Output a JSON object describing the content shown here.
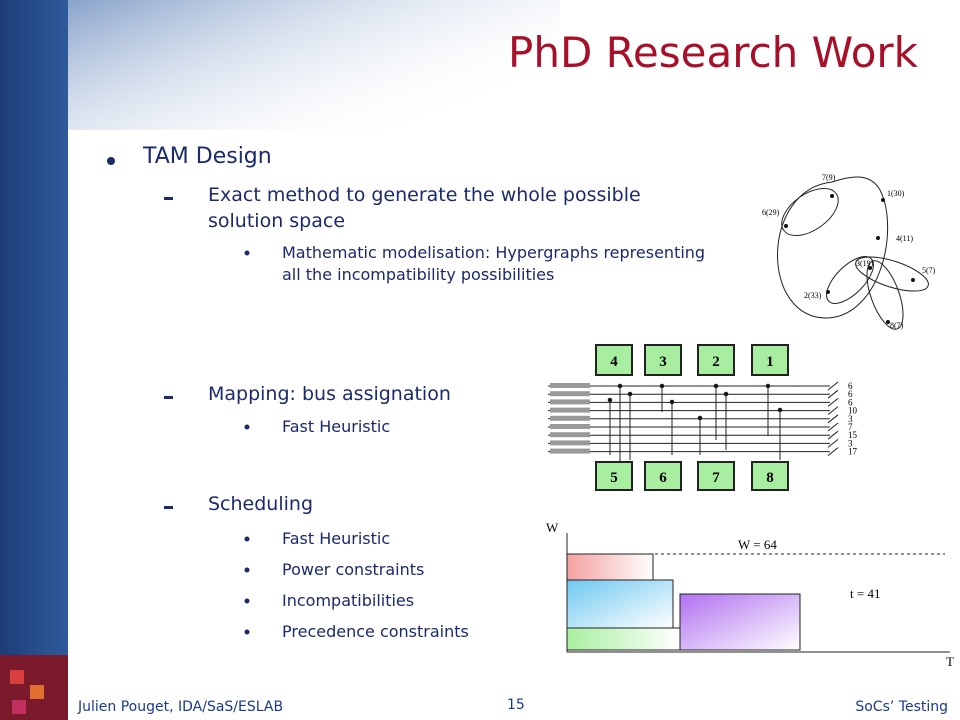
{
  "header": {
    "title": "PhD Research Work"
  },
  "content": {
    "bullet": "TAM Design",
    "items": [
      {
        "heading": "Exact method to generate the whole possible solution space",
        "subitems": [
          "Mathematic modelisation: Hypergraphs representing all the incompatibility possibilities"
        ]
      },
      {
        "heading": "Mapping: bus assignation",
        "subitems": [
          "Fast Heuristic"
        ]
      },
      {
        "heading": "Scheduling",
        "subitems": [
          "Fast Heuristic",
          "Power constraints",
          "Incompatibilities",
          "Precedence constraints"
        ]
      }
    ]
  },
  "hypergraph": {
    "nodes": [
      "7(9)",
      "1(30)",
      "6(29)",
      "4(11)",
      "3(19)",
      "5(7)",
      "2(33)",
      "8(7)"
    ]
  },
  "bus_diagram": {
    "top_cores": [
      "4",
      "3",
      "2",
      "1"
    ],
    "bottom_cores": [
      "5",
      "6",
      "7",
      "8"
    ],
    "widths": [
      "6",
      "6",
      "6",
      "10",
      "3",
      "7",
      "15",
      "3",
      "17"
    ]
  },
  "schedule": {
    "y_axis": "W",
    "x_axis": "T",
    "width_label": "W = 64",
    "time_label": "t = 41"
  },
  "footer": {
    "author": "Julien Pouget, IDA/SaS/ESLAB",
    "page": "15",
    "topic": "SoCs’ Testing"
  }
}
